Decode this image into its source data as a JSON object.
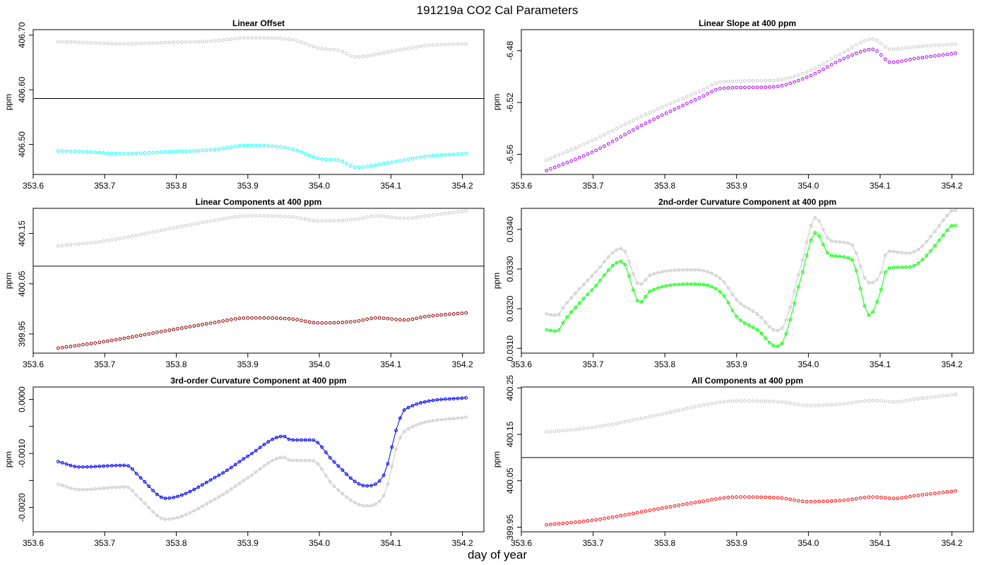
{
  "figure": {
    "title": "191219a   CO2 Cal Parameters",
    "xlabel": "day of year"
  },
  "chart_data": [
    {
      "id": "p1",
      "type": "scatter",
      "title": "Linear Offset",
      "xlabel": "",
      "ylabel": "ppm",
      "xlim": [
        353.6,
        354.23
      ],
      "ylim": [
        406.445,
        406.71
      ],
      "xticks": [
        353.6,
        353.7,
        353.8,
        353.9,
        354.0,
        354.1,
        354.2
      ],
      "yticks": [
        406.5,
        406.6,
        406.7
      ],
      "xtick_labels": [
        "353.6",
        "353.7",
        "353.8",
        "353.9",
        "354.0",
        "354.1",
        "354.2"
      ],
      "ytick_labels": [
        "406.50",
        "406.60",
        "406.70"
      ],
      "hline": 406.584,
      "x_range": [
        353.635,
        354.205
      ],
      "n_points": 100,
      "series": [
        {
          "color": "#c8c8c8",
          "line": false,
          "knots": [
            [
              353.635,
              406.688
            ],
            [
              353.68,
              406.686
            ],
            [
              353.72,
              406.684
            ],
            [
              353.8,
              406.687
            ],
            [
              353.85,
              406.689
            ],
            [
              353.9,
              406.695
            ],
            [
              353.96,
              406.692
            ],
            [
              354.0,
              406.676
            ],
            [
              354.03,
              406.671
            ],
            [
              354.05,
              406.66
            ],
            [
              354.1,
              406.67
            ],
            [
              354.15,
              406.681
            ],
            [
              354.205,
              406.684
            ]
          ]
        },
        {
          "color": "#00ffff",
          "line": false,
          "knots": [
            [
              353.635,
              406.488
            ],
            [
              353.68,
              406.486
            ],
            [
              353.72,
              406.483
            ],
            [
              353.8,
              406.487
            ],
            [
              353.85,
              406.49
            ],
            [
              353.9,
              406.498
            ],
            [
              353.96,
              406.492
            ],
            [
              354.0,
              406.474
            ],
            [
              354.03,
              406.47
            ],
            [
              354.05,
              406.458
            ],
            [
              354.1,
              406.467
            ],
            [
              354.15,
              406.478
            ],
            [
              354.205,
              406.483
            ]
          ]
        }
      ]
    },
    {
      "id": "p2",
      "type": "scatter",
      "title": "Linear Slope at 400 ppm",
      "xlabel": "",
      "ylabel": "ppm",
      "xlim": [
        353.6,
        354.23
      ],
      "ylim": [
        -6.5755,
        -6.4638
      ],
      "xticks": [
        353.6,
        353.7,
        353.8,
        353.9,
        354.0,
        354.1,
        354.2
      ],
      "yticks": [
        -6.56,
        -6.52,
        -6.48
      ],
      "xtick_labels": [
        "353.6",
        "353.7",
        "353.8",
        "353.9",
        "354.0",
        "354.1",
        "354.2"
      ],
      "ytick_labels": [
        "-6.56",
        "-6.52",
        "-6.48"
      ],
      "hline": null,
      "x_range": [
        353.635,
        354.205
      ],
      "n_points": 100,
      "series": [
        {
          "color": "#c8c8c8",
          "line": false,
          "knots": [
            [
              353.635,
              -6.5645
            ],
            [
              353.7,
              -6.549
            ],
            [
              353.77,
              -6.53
            ],
            [
              353.85,
              -6.511
            ],
            [
              353.88,
              -6.504
            ],
            [
              353.95,
              -6.503
            ],
            [
              354.0,
              -6.496
            ],
            [
              354.05,
              -6.481
            ],
            [
              354.09,
              -6.471
            ],
            [
              354.115,
              -6.479
            ],
            [
              354.15,
              -6.477
            ],
            [
              354.205,
              -6.475
            ]
          ]
        },
        {
          "color": "#aa00ee",
          "line": false,
          "knots": [
            [
              353.635,
              -6.5725
            ],
            [
              353.7,
              -6.558
            ],
            [
              353.77,
              -6.537
            ],
            [
              353.85,
              -6.516
            ],
            [
              353.88,
              -6.509
            ],
            [
              353.95,
              -6.508
            ],
            [
              354.0,
              -6.5
            ],
            [
              354.05,
              -6.486
            ],
            [
              354.09,
              -6.479
            ],
            [
              354.115,
              -6.489
            ],
            [
              354.15,
              -6.486
            ],
            [
              354.205,
              -6.482
            ]
          ]
        }
      ]
    },
    {
      "id": "p3",
      "type": "scatter",
      "title": "Linear Components at 400 ppm",
      "xlabel": "",
      "ylabel": "ppm",
      "xlim": [
        353.6,
        354.23
      ],
      "ylim": [
        399.912,
        400.2
      ],
      "xticks": [
        353.6,
        353.7,
        353.8,
        353.9,
        354.0,
        354.1,
        354.2
      ],
      "yticks": [
        399.95,
        400.05,
        400.15
      ],
      "xtick_labels": [
        "353.6",
        "353.7",
        "353.8",
        "353.9",
        "354.0",
        "354.1",
        "354.2"
      ],
      "ytick_labels": [
        "399.95",
        "400.05",
        "400.15"
      ],
      "hline": 400.085,
      "x_range": [
        353.635,
        354.205
      ],
      "n_points": 100,
      "series": [
        {
          "color": "#c8c8c8",
          "line": false,
          "knots": [
            [
              353.635,
              400.125
            ],
            [
              353.7,
              400.135
            ],
            [
              353.8,
              400.162
            ],
            [
              353.85,
              400.175
            ],
            [
              353.9,
              400.185
            ],
            [
              353.96,
              400.183
            ],
            [
              354.0,
              400.175
            ],
            [
              354.05,
              400.178
            ],
            [
              354.08,
              400.185
            ],
            [
              354.12,
              400.18
            ],
            [
              354.15,
              400.185
            ],
            [
              354.205,
              400.195
            ]
          ]
        },
        {
          "color": "#8b0000",
          "line": false,
          "knots": [
            [
              353.635,
              399.922
            ],
            [
              353.7,
              399.935
            ],
            [
              353.8,
              399.96
            ],
            [
              353.85,
              399.972
            ],
            [
              353.9,
              399.982
            ],
            [
              353.96,
              399.98
            ],
            [
              354.0,
              399.972
            ],
            [
              354.05,
              399.975
            ],
            [
              354.08,
              399.982
            ],
            [
              354.12,
              399.978
            ],
            [
              354.15,
              399.985
            ],
            [
              354.205,
              399.992
            ]
          ]
        }
      ]
    },
    {
      "id": "p4",
      "type": "line",
      "title": "2nd-order Curvature Component at 400 ppm",
      "xlabel": "",
      "ylabel": "ppm",
      "xlim": [
        353.6,
        354.23
      ],
      "ylim": [
        0.03088,
        0.03453
      ],
      "xticks": [
        353.6,
        353.7,
        353.8,
        353.9,
        354.0,
        354.1,
        354.2
      ],
      "yticks": [
        0.031,
        0.032,
        0.033,
        0.034
      ],
      "xtick_labels": [
        "353.6",
        "353.7",
        "353.8",
        "353.9",
        "354.0",
        "354.1",
        "354.2"
      ],
      "ytick_labels": [
        "0.0310",
        "0.0320",
        "0.0330",
        "0.0340"
      ],
      "hline": null,
      "x_range": [
        353.635,
        354.205
      ],
      "n_points": 100,
      "series": [
        {
          "color": "#c8c8c8",
          "line": true,
          "knots": [
            [
              353.635,
              0.03187
            ],
            [
              353.65,
              0.03183
            ],
            [
              353.66,
              0.03207
            ],
            [
              353.7,
              0.03285
            ],
            [
              353.74,
              0.03352
            ],
            [
              353.765,
              0.0326
            ],
            [
              353.78,
              0.03285
            ],
            [
              353.84,
              0.03298
            ],
            [
              353.88,
              0.03272
            ],
            [
              353.9,
              0.03222
            ],
            [
              353.93,
              0.03185
            ],
            [
              353.955,
              0.03145
            ],
            [
              353.965,
              0.03155
            ],
            [
              353.99,
              0.0331
            ],
            [
              354.01,
              0.0343
            ],
            [
              354.03,
              0.03372
            ],
            [
              354.06,
              0.03362
            ],
            [
              354.08,
              0.03272
            ],
            [
              354.085,
              0.03265
            ],
            [
              354.1,
              0.03285
            ],
            [
              354.11,
              0.03345
            ],
            [
              354.14,
              0.0334
            ],
            [
              354.2,
              0.03448
            ]
          ]
        },
        {
          "color": "#00ff00",
          "line": true,
          "knots": [
            [
              353.635,
              0.03147
            ],
            [
              353.65,
              0.03143
            ],
            [
              353.66,
              0.0317
            ],
            [
              353.7,
              0.0325
            ],
            [
              353.74,
              0.0332
            ],
            [
              353.765,
              0.03215
            ],
            [
              353.78,
              0.03245
            ],
            [
              353.84,
              0.03262
            ],
            [
              353.88,
              0.03238
            ],
            [
              353.9,
              0.0318
            ],
            [
              353.93,
              0.03145
            ],
            [
              353.955,
              0.03105
            ],
            [
              353.965,
              0.03118
            ],
            [
              353.99,
              0.0328
            ],
            [
              354.01,
              0.03392
            ],
            [
              354.03,
              0.03335
            ],
            [
              354.06,
              0.03325
            ],
            [
              354.085,
              0.03183
            ],
            [
              354.1,
              0.0324
            ],
            [
              354.11,
              0.03302
            ],
            [
              354.14,
              0.03305
            ],
            [
              354.2,
              0.0341
            ]
          ]
        }
      ]
    },
    {
      "id": "p5",
      "type": "line",
      "title": "3rd-order Curvature Component at 400 ppm",
      "xlabel": "",
      "ylabel": "ppm",
      "xlim": [
        353.6,
        354.23
      ],
      "ylim": [
        -0.00245,
        0.00023
      ],
      "xticks": [
        353.6,
        353.7,
        353.8,
        353.9,
        354.0,
        354.1,
        354.2
      ],
      "yticks": [
        -0.002,
        -0.0015,
        -0.001,
        -0.0005,
        0.0
      ],
      "xtick_labels": [
        "353.6",
        "353.7",
        "353.8",
        "353.9",
        "354.0",
        "354.1",
        "354.2"
      ],
      "ytick_labels": [
        "-0.0020",
        "",
        "-0.0010",
        "",
        "0.0000"
      ],
      "hline": null,
      "x_range": [
        353.635,
        354.205
      ],
      "n_points": 100,
      "series": [
        {
          "color": "#c8c8c8",
          "line": true,
          "knots": [
            [
              353.635,
              -0.00157
            ],
            [
              353.665,
              -0.00167
            ],
            [
              353.73,
              -0.00162
            ],
            [
              353.75,
              -0.00185
            ],
            [
              353.785,
              -0.00222
            ],
            [
              353.86,
              -0.0018
            ],
            [
              353.9,
              -0.00145
            ],
            [
              353.95,
              -0.00107
            ],
            [
              353.96,
              -0.00113
            ],
            [
              353.99,
              -0.00113
            ],
            [
              354.02,
              -0.0016
            ],
            [
              354.065,
              -0.00197
            ],
            [
              354.09,
              -0.00178
            ],
            [
              354.11,
              -0.0008
            ],
            [
              354.12,
              -0.00058
            ],
            [
              354.205,
              -0.00033
            ]
          ]
        },
        {
          "color": "#0000ee",
          "line": true,
          "knots": [
            [
              353.635,
              -0.00115
            ],
            [
              353.665,
              -0.00125
            ],
            [
              353.73,
              -0.00122
            ],
            [
              353.75,
              -0.00145
            ],
            [
              353.785,
              -0.00183
            ],
            [
              353.86,
              -0.0014
            ],
            [
              353.9,
              -0.00105
            ],
            [
              353.95,
              -0.00068
            ],
            [
              353.96,
              -0.00075
            ],
            [
              353.99,
              -0.00075
            ],
            [
              354.02,
              -0.00115
            ],
            [
              354.065,
              -0.0016
            ],
            [
              354.09,
              -0.0014
            ],
            [
              354.11,
              -0.00045
            ],
            [
              354.12,
              -0.00018
            ],
            [
              354.205,
              3e-05
            ]
          ]
        }
      ]
    },
    {
      "id": "p6",
      "type": "scatter",
      "title": "All Components at 400 ppm",
      "xlabel": "",
      "ylabel": "ppm",
      "xlim": [
        353.6,
        354.23
      ],
      "ylim": [
        399.94,
        400.252
      ],
      "xticks": [
        353.6,
        353.7,
        353.8,
        353.9,
        354.0,
        354.1,
        354.2
      ],
      "yticks": [
        399.95,
        400.05,
        400.15,
        400.25
      ],
      "xtick_labels": [
        "353.6",
        "353.7",
        "353.8",
        "353.9",
        "354.0",
        "354.1",
        "354.2"
      ],
      "ytick_labels": [
        "399.95",
        "400.05",
        "400.15",
        "400.25"
      ],
      "hline": 400.1,
      "x_range": [
        353.635,
        354.205
      ],
      "n_points": 100,
      "series": [
        {
          "color": "#c8c8c8",
          "line": false,
          "knots": [
            [
              353.635,
              400.155
            ],
            [
              353.7,
              400.165
            ],
            [
              353.8,
              400.195
            ],
            [
              353.85,
              400.212
            ],
            [
              353.9,
              400.222
            ],
            [
              353.96,
              400.22
            ],
            [
              354.0,
              400.212
            ],
            [
              354.05,
              400.216
            ],
            [
              354.09,
              400.223
            ],
            [
              354.12,
              400.22
            ],
            [
              354.15,
              400.226
            ],
            [
              354.205,
              400.236
            ]
          ]
        },
        {
          "color": "#ff0000",
          "line": false,
          "knots": [
            [
              353.635,
              399.955
            ],
            [
              353.7,
              399.965
            ],
            [
              353.8,
              399.992
            ],
            [
              353.85,
              400.005
            ],
            [
              353.9,
              400.015
            ],
            [
              353.96,
              400.013
            ],
            [
              354.0,
              400.005
            ],
            [
              354.05,
              400.008
            ],
            [
              354.09,
              400.015
            ],
            [
              354.12,
              400.012
            ],
            [
              354.15,
              400.018
            ],
            [
              354.205,
              400.028
            ]
          ]
        }
      ]
    }
  ]
}
